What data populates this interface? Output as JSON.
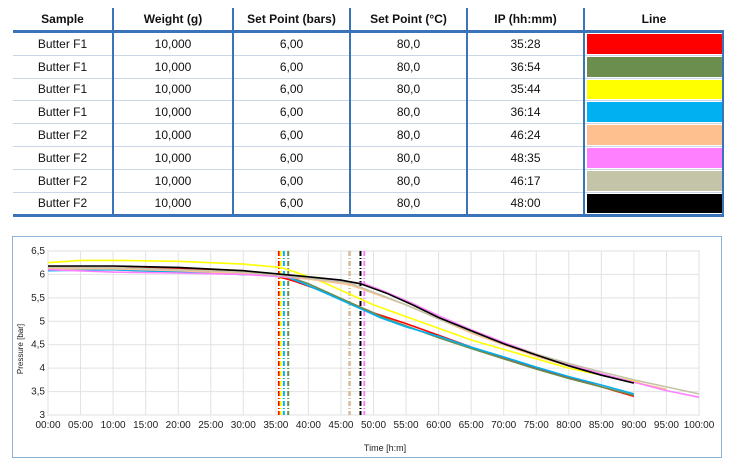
{
  "table": {
    "headers": [
      "Sample",
      "Weight (g)",
      "Set Point (bars)",
      "Set Point (°C)",
      "IP (hh:mm)",
      "Line"
    ],
    "rows": [
      {
        "sample": "Butter F1",
        "weight": "10,000",
        "setpoint_bars": "6,00",
        "setpoint_c": "80,0",
        "ip": "35:28",
        "color": "#ff0000"
      },
      {
        "sample": "Butter F1",
        "weight": "10,000",
        "setpoint_bars": "6,00",
        "setpoint_c": "80,0",
        "ip": "36:54",
        "color": "#6b8e4e"
      },
      {
        "sample": "Butter F1",
        "weight": "10,000",
        "setpoint_bars": "6,00",
        "setpoint_c": "80,0",
        "ip": "35:44",
        "color": "#ffff00"
      },
      {
        "sample": "Butter F1",
        "weight": "10,000",
        "setpoint_bars": "6,00",
        "setpoint_c": "80,0",
        "ip": "36:14",
        "color": "#00b0f0"
      },
      {
        "sample": "Butter F2",
        "weight": "10,000",
        "setpoint_bars": "6,00",
        "setpoint_c": "80,0",
        "ip": "46:24",
        "color": "#ffc090"
      },
      {
        "sample": "Butter F2",
        "weight": "10,000",
        "setpoint_bars": "6,00",
        "setpoint_c": "80,0",
        "ip": "48:35",
        "color": "#ff80ff"
      },
      {
        "sample": "Butter F2",
        "weight": "10,000",
        "setpoint_bars": "6,00",
        "setpoint_c": "80,0",
        "ip": "46:17",
        "color": "#c4c4a8"
      },
      {
        "sample": "Butter F2",
        "weight": "10,000",
        "setpoint_bars": "6,00",
        "setpoint_c": "80,0",
        "ip": "48:00",
        "color": "#000000"
      }
    ]
  },
  "chart_data": {
    "type": "line",
    "xlabel": "Time [h:m]",
    "ylabel": "Pressure [bar]",
    "xlim": [
      0,
      100
    ],
    "ylim": [
      3,
      6.5
    ],
    "x_ticks": [
      "00:00",
      "05:00",
      "10:00",
      "15:00",
      "20:00",
      "25:00",
      "30:00",
      "35:00",
      "40:00",
      "45:00",
      "50:00",
      "55:00",
      "60:00",
      "65:00",
      "70:00",
      "75:00",
      "80:00",
      "85:00",
      "90:00",
      "95:00",
      "100:00"
    ],
    "y_ticks": [
      "3",
      "3,5",
      "4",
      "4,5",
      "5",
      "5,5",
      "6",
      "6,5"
    ],
    "grid": true,
    "series": [
      {
        "color": "#ff0000",
        "ip": 35.47,
        "x": [
          0,
          10,
          20,
          30,
          33,
          35.5,
          38,
          42,
          46,
          50,
          55,
          60,
          65,
          70,
          75,
          80,
          85,
          90
        ],
        "y": [
          6.15,
          6.15,
          6.12,
          6.08,
          6.02,
          5.95,
          5.85,
          5.65,
          5.42,
          5.18,
          4.95,
          4.7,
          4.45,
          4.22,
          4.0,
          3.8,
          3.6,
          3.4
        ]
      },
      {
        "color": "#6b8e4e",
        "ip": 36.9,
        "x": [
          0,
          10,
          20,
          30,
          35,
          37,
          40,
          44,
          48,
          52,
          56,
          60,
          65,
          70,
          75,
          80,
          85,
          90
        ],
        "y": [
          6.1,
          6.1,
          6.05,
          6.0,
          5.98,
          5.95,
          5.8,
          5.55,
          5.3,
          5.05,
          4.85,
          4.65,
          4.42,
          4.2,
          3.98,
          3.78,
          3.6,
          3.42
        ]
      },
      {
        "color": "#ffff00",
        "ip": 35.73,
        "x": [
          0,
          5,
          10,
          20,
          30,
          35.7,
          38,
          42,
          46,
          50,
          55,
          60,
          65,
          70,
          75,
          80,
          85,
          91
        ],
        "y": [
          6.25,
          6.3,
          6.3,
          6.28,
          6.22,
          6.15,
          6.05,
          5.85,
          5.6,
          5.35,
          5.1,
          4.85,
          4.6,
          4.4,
          4.2,
          4.0,
          3.85,
          3.7
        ]
      },
      {
        "color": "#00b0f0",
        "ip": 36.23,
        "x": [
          0,
          10,
          20,
          30,
          35,
          36.2,
          39,
          43,
          47,
          51,
          55,
          60,
          65,
          70,
          75,
          80,
          85,
          90
        ],
        "y": [
          6.08,
          6.1,
          6.05,
          6.0,
          5.98,
          5.97,
          5.82,
          5.58,
          5.33,
          5.08,
          4.88,
          4.68,
          4.45,
          4.24,
          4.02,
          3.82,
          3.64,
          3.45
        ]
      },
      {
        "color": "#ffc090",
        "ip": 46.4,
        "x": [
          0,
          10,
          20,
          30,
          40,
          46.4,
          50,
          55,
          60,
          65,
          70,
          75,
          80,
          85,
          90,
          95
        ],
        "y": [
          6.12,
          6.12,
          6.08,
          6.02,
          5.9,
          5.78,
          5.6,
          5.35,
          5.05,
          4.75,
          4.5,
          4.25,
          4.05,
          3.85,
          3.7,
          3.55
        ]
      },
      {
        "color": "#ff80ff",
        "ip": 48.58,
        "x": [
          0,
          10,
          20,
          30,
          40,
          46,
          48.6,
          52,
          56,
          60,
          65,
          70,
          75,
          80,
          85,
          90,
          95,
          100
        ],
        "y": [
          6.1,
          6.05,
          6.03,
          6.0,
          5.92,
          5.85,
          5.8,
          5.62,
          5.38,
          5.12,
          4.82,
          4.55,
          4.3,
          4.08,
          3.88,
          3.7,
          3.52,
          3.38
        ]
      },
      {
        "color": "#c4c4a8",
        "ip": 46.28,
        "x": [
          0,
          10,
          20,
          30,
          40,
          46.3,
          50,
          55,
          60,
          65,
          70,
          75,
          80,
          85,
          90,
          95,
          100
        ],
        "y": [
          6.15,
          6.15,
          6.1,
          6.05,
          5.92,
          5.82,
          5.62,
          5.35,
          5.05,
          4.78,
          4.52,
          4.3,
          4.1,
          3.92,
          3.75,
          3.6,
          3.45
        ]
      },
      {
        "color": "#000000",
        "ip": 48.0,
        "x": [
          0,
          10,
          20,
          30,
          40,
          45,
          48,
          52,
          56,
          60,
          65,
          70,
          75,
          80,
          85,
          90
        ],
        "y": [
          6.18,
          6.18,
          6.15,
          6.08,
          5.95,
          5.88,
          5.8,
          5.6,
          5.35,
          5.08,
          4.8,
          4.52,
          4.28,
          4.05,
          3.85,
          3.68
        ]
      }
    ]
  }
}
